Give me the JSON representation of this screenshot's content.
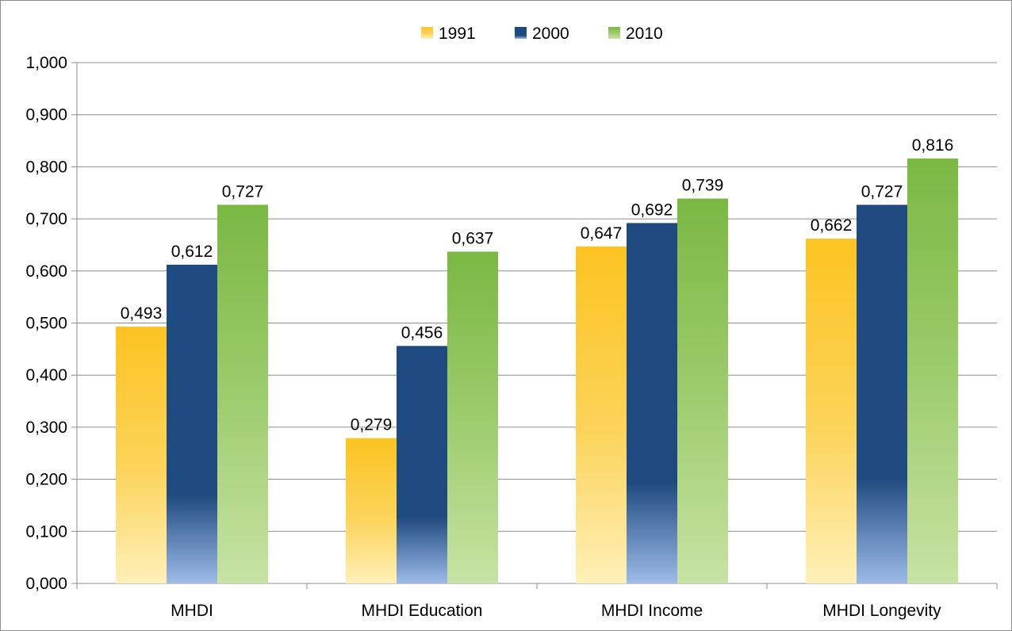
{
  "chart_data": {
    "type": "bar",
    "categories": [
      "MHDI",
      "MHDI Education",
      "MHDI Income",
      "MHDI Longevity"
    ],
    "series": [
      {
        "name": "1991",
        "values": [
          0.493,
          0.279,
          0.647,
          0.662
        ],
        "labels": [
          "0,493",
          "0,279",
          "0,647",
          "0,662"
        ],
        "color": "#fcc421"
      },
      {
        "name": "2000",
        "values": [
          0.612,
          0.456,
          0.692,
          0.727
        ],
        "labels": [
          "0,612",
          "0,456",
          "0,692",
          "0,727"
        ],
        "color": "#1f4a80"
      },
      {
        "name": "2010",
        "values": [
          0.727,
          0.637,
          0.739,
          0.816
        ],
        "labels": [
          "0,727",
          "0,637",
          "0,739",
          "0,816"
        ],
        "color": "#7ab843"
      }
    ],
    "y_ticks": [
      "0,000",
      "0,100",
      "0,200",
      "0,300",
      "0,400",
      "0,500",
      "0,600",
      "0,700",
      "0,800",
      "0,900",
      "1,000"
    ],
    "ylim": [
      0,
      1
    ],
    "grid": true,
    "legend_position": "top-center"
  }
}
